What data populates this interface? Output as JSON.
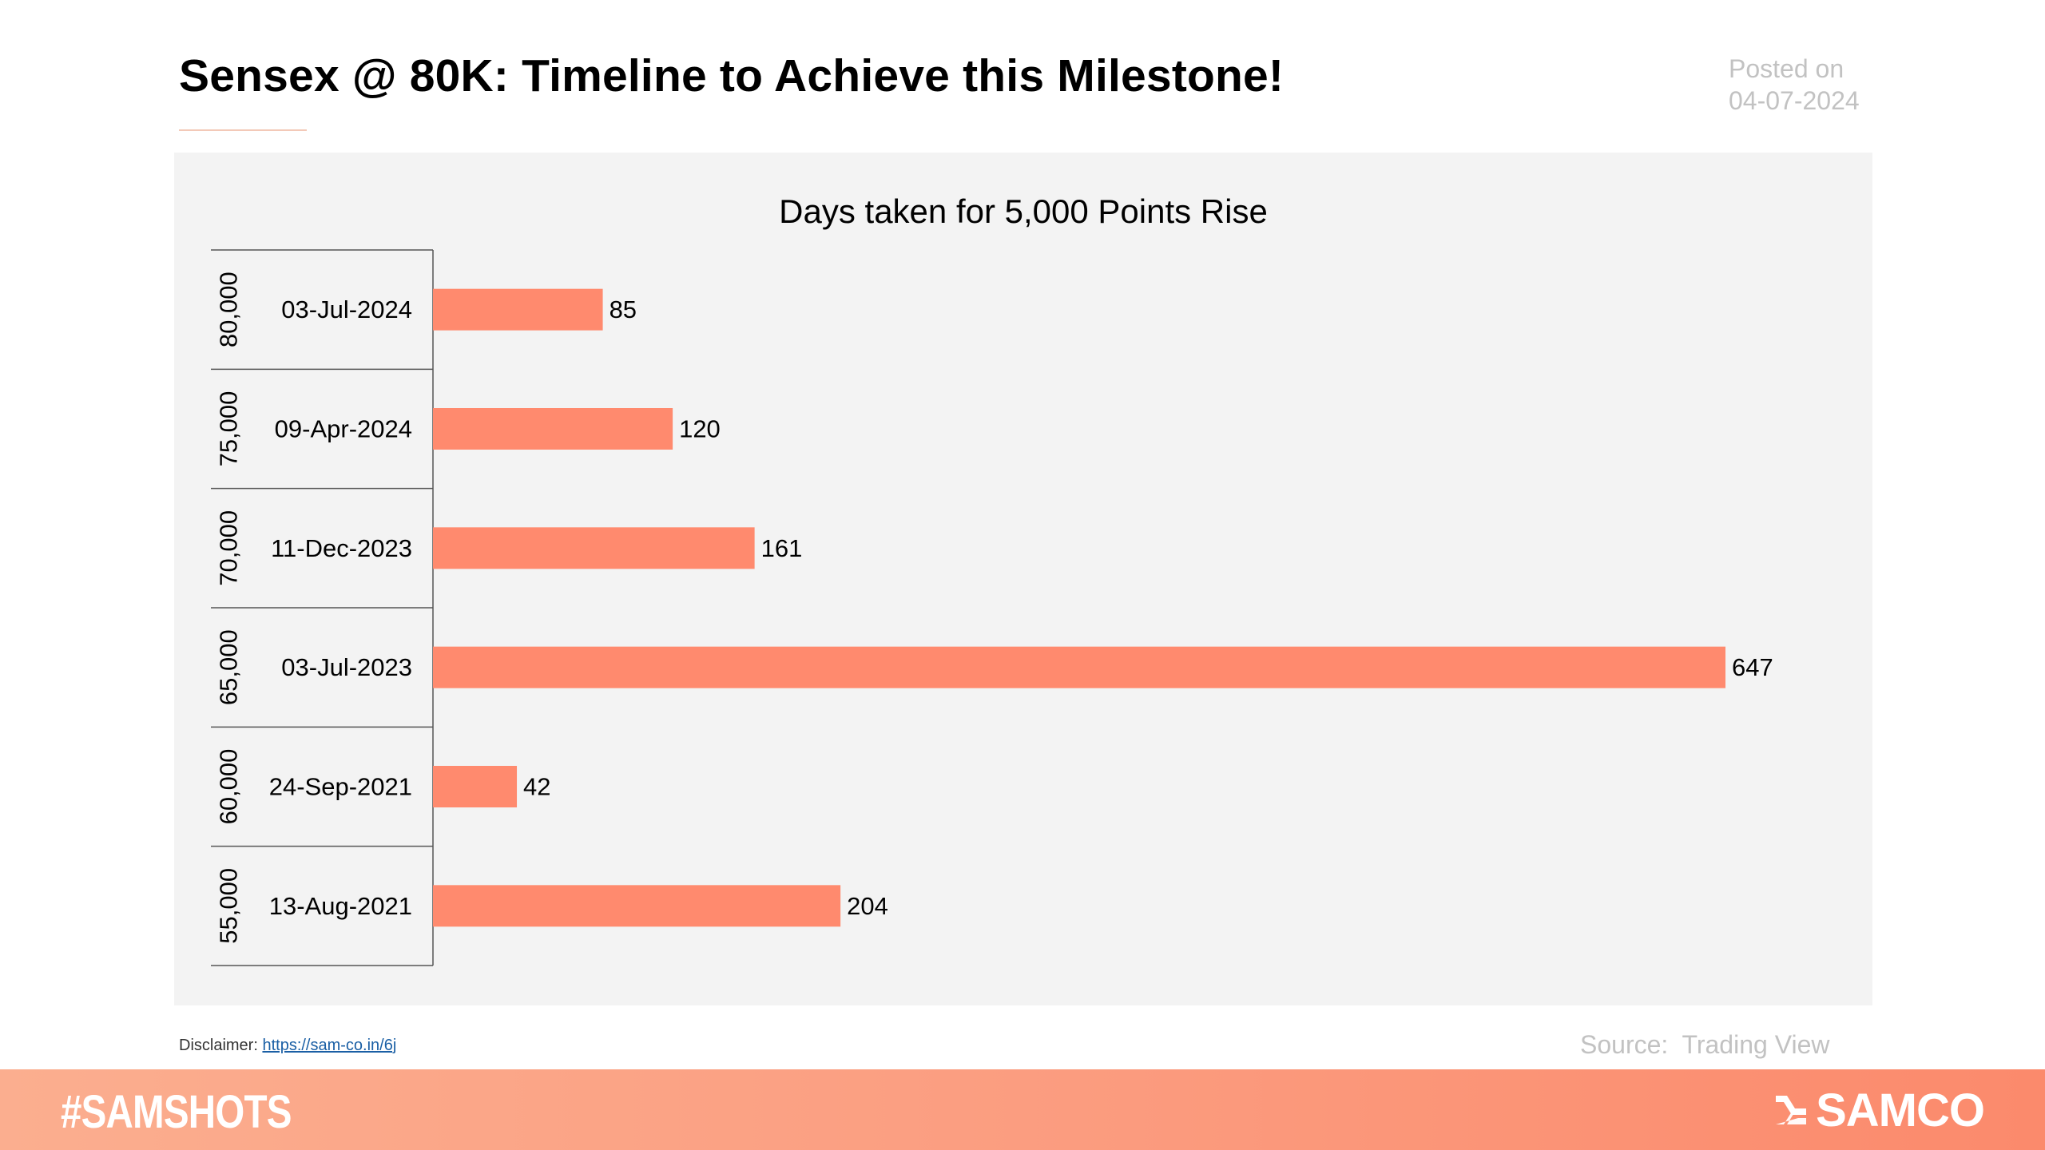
{
  "header": {
    "title": "Sensex @ 80K: Timeline to Achieve this Milestone!",
    "posted_label": "Posted on",
    "posted_date": "04-07-2024"
  },
  "chart_data": {
    "type": "bar",
    "orientation": "horizontal",
    "title": "Days taken for 5,000 Points Rise",
    "categories": [
      {
        "level": "80,000",
        "date": "03-Jul-2024"
      },
      {
        "level": "75,000",
        "date": "09-Apr-2024"
      },
      {
        "level": "70,000",
        "date": "11-Dec-2023"
      },
      {
        "level": "65,000",
        "date": "03-Jul-2023"
      },
      {
        "level": "60,000",
        "date": "24-Sep-2021"
      },
      {
        "level": "55,000",
        "date": "13-Aug-2021"
      }
    ],
    "values": [
      85,
      120,
      161,
      647,
      42,
      204
    ],
    "data_labels": [
      "85",
      "120",
      "161",
      "647",
      "42",
      "204"
    ],
    "bar_color": "#ff8a6e",
    "grid": false,
    "legend": "none"
  },
  "footer_note": {
    "disclaimer_label": "Disclaimer: ",
    "disclaimer_link": "https://sam-co.in/6j",
    "source": "Source:  Trading View"
  },
  "footer": {
    "hashtag": "#SAMSHOTS",
    "brand": "SAMCO",
    "brand_icon": "samco-logo-icon",
    "accent_color": "#fb9d80"
  }
}
